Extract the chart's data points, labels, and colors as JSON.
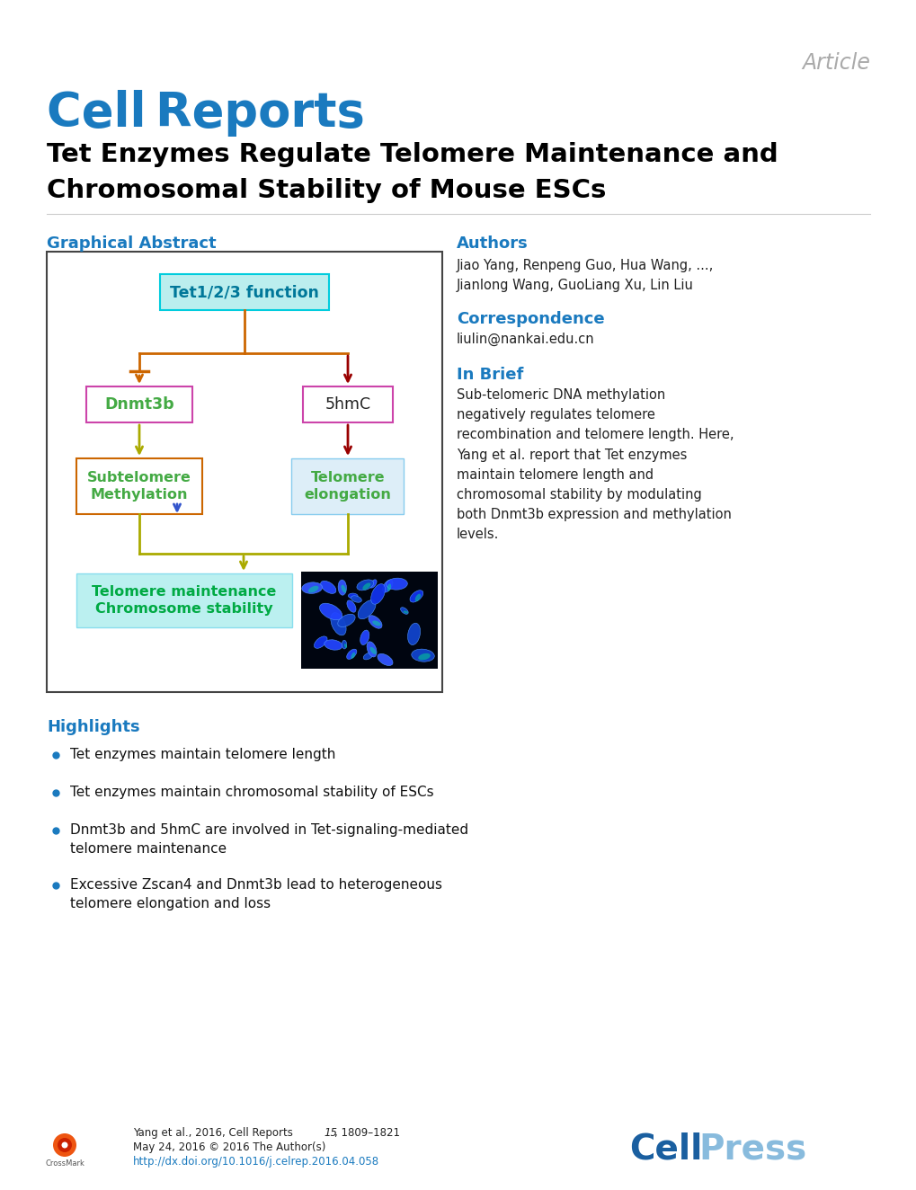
{
  "bg_color": "#ffffff",
  "article_label": "Article",
  "article_color": "#aaaaaa",
  "journal_color": "#1a7abf",
  "title_line1": "Tet Enzymes Regulate Telomere Maintenance and",
  "title_line2": "Chromosomal Stability of Mouse ESCs",
  "title_color": "#000000",
  "section_color": "#1a7abf",
  "graphical_abstract_label": "Graphical Abstract",
  "authors_label": "Authors",
  "authors_text": "Jiao Yang, Renpeng Guo, Hua Wang, ...,\nJianlong Wang, GuoLiang Xu, Lin Liu",
  "correspondence_label": "Correspondence",
  "correspondence_text": "liulin@nankai.edu.cn",
  "inbrief_label": "In Brief",
  "inbrief_text": "Sub-telomeric DNA methylation\nnegatively regulates telomere\nrecombination and telomere length. Here,\nYang et al. report that Tet enzymes\nmaintain telomere length and\nchromosomal stability by modulating\nboth Dnmt3b expression and methylation\nlevels.",
  "highlights_label": "Highlights",
  "highlights": [
    "Tet enzymes maintain telomere length",
    "Tet enzymes maintain chromosomal stability of ESCs",
    "Dnmt3b and 5hmC are involved in Tet-signaling-mediated\ntelomere maintenance",
    "Excessive Zscan4 and Dnmt3b lead to heterogeneous\ntelomere elongation and loss"
  ],
  "footer_citation": "Yang et al., 2016, Cell Reports ",
  "footer_citation_italic": "15",
  "footer_citation_end": ", 1809–1821",
  "footer_date": "May 24, 2016 © 2016 The Author(s)",
  "footer_doi": "http://dx.doi.org/10.1016/j.celrep.2016.04.058",
  "footer_doi_color": "#1a7abf",
  "cellpress_cell_color": "#1a5fa0",
  "cellpress_press_color": "#88bbdd"
}
